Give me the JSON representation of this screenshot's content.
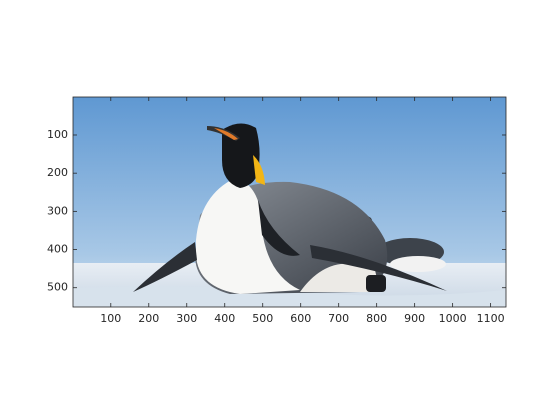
{
  "chart_data": {
    "type": "image",
    "xlim": [
      0.5,
      1140.5
    ],
    "ylim": [
      0.5,
      550.5
    ],
    "y_reversed": true,
    "xticks": [
      100,
      200,
      300,
      400,
      500,
      600,
      700,
      800,
      900,
      1000,
      1100
    ],
    "yticks": [
      100,
      200,
      300,
      400,
      500
    ]
  }
}
